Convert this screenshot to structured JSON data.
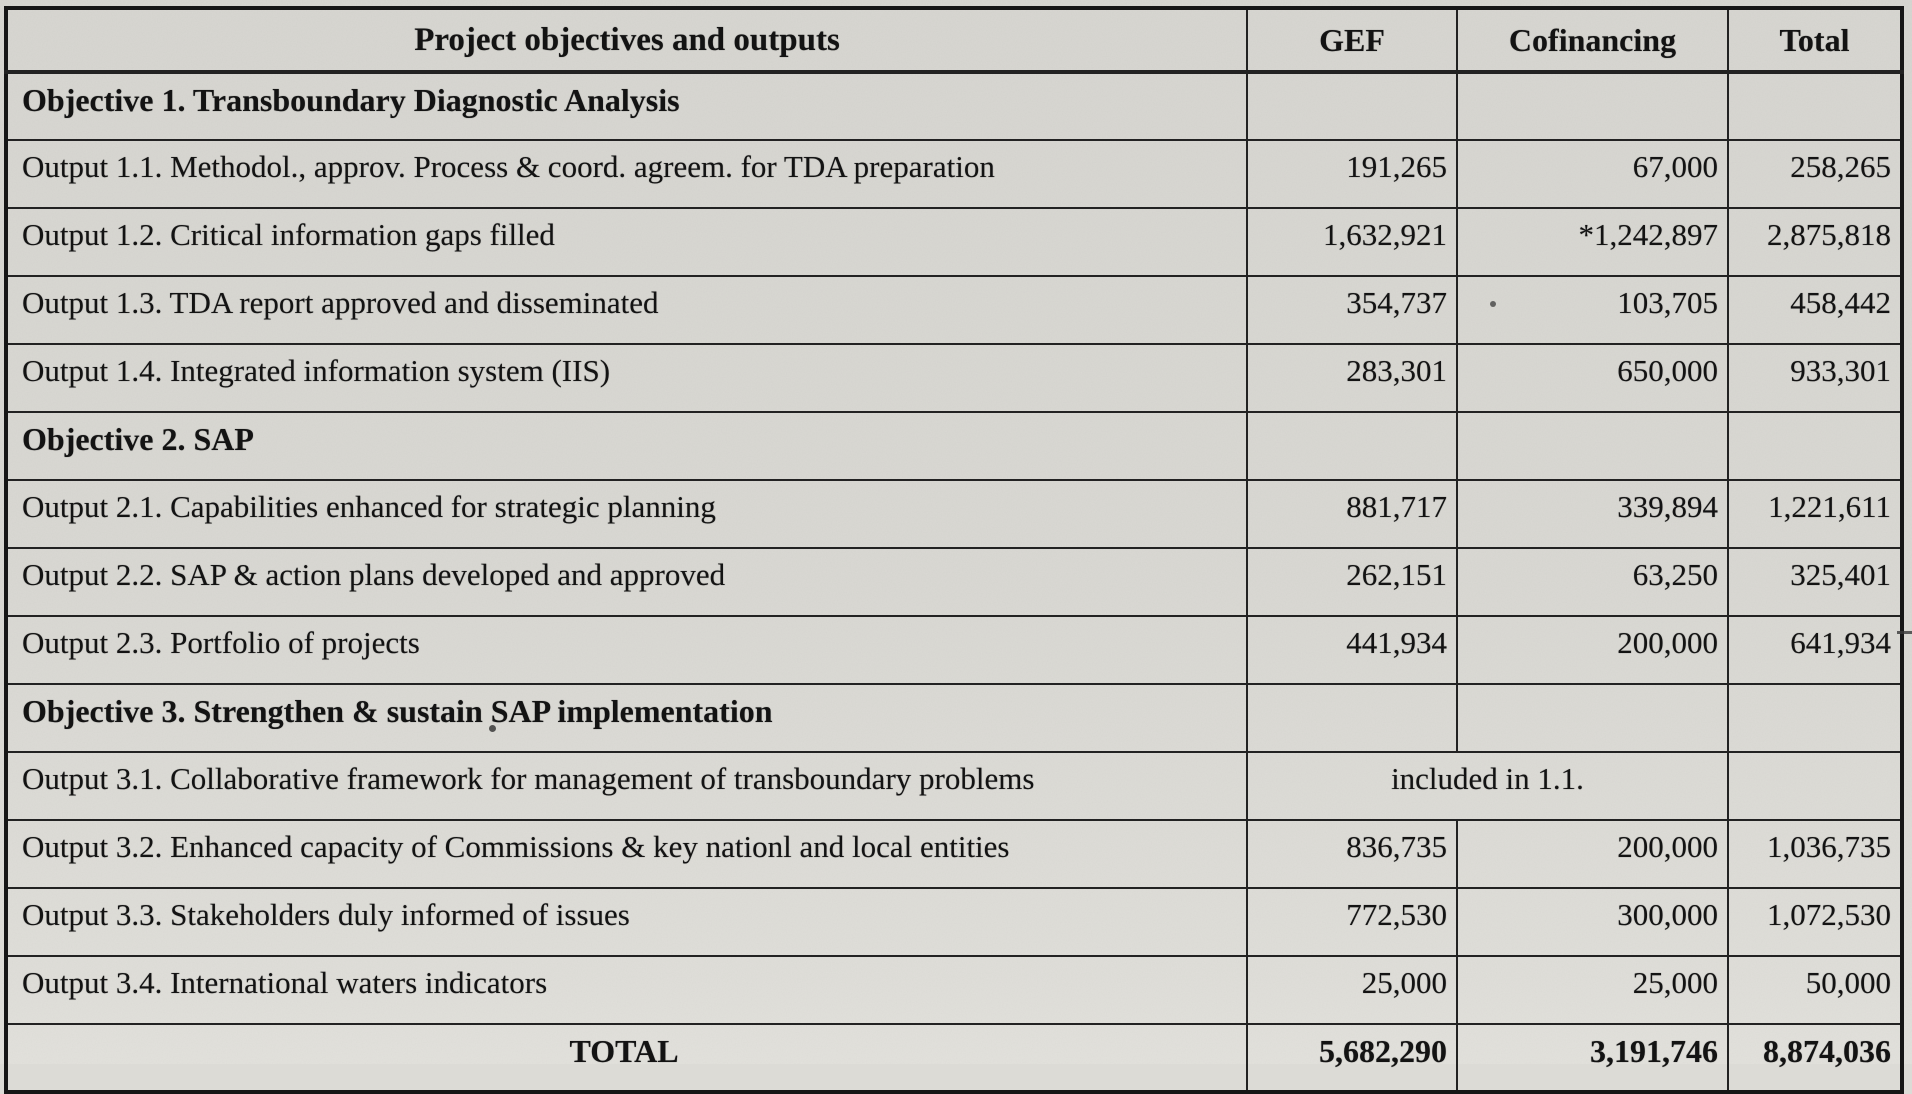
{
  "table": {
    "columns": [
      "Project objectives and outputs",
      "GEF",
      "Cofinancing",
      "Total"
    ],
    "rows": [
      {
        "type": "section",
        "label": "Objective 1. Transboundary Diagnostic Analysis"
      },
      {
        "type": "item",
        "label": "Output 1.1. Methodol., approv. Process & coord. agreem. for TDA preparation",
        "gef": "191,265",
        "cofinancing": "67,000",
        "total": "258,265"
      },
      {
        "type": "item",
        "label": "Output 1.2. Critical information gaps filled",
        "gef": "1,632,921",
        "cofinancing": "*1,242,897",
        "total": "2,875,818"
      },
      {
        "type": "item",
        "label": "Output 1.3. TDA report approved and disseminated",
        "gef": "354,737",
        "cofinancing": "103,705",
        "total": "458,442"
      },
      {
        "type": "item",
        "label": "Output 1.4. Integrated information system (IIS)",
        "gef": "283,301",
        "cofinancing": "650,000",
        "total": "933,301"
      },
      {
        "type": "section",
        "label": "Objective 2. SAP"
      },
      {
        "type": "item",
        "label": "Output 2.1. Capabilities enhanced for strategic planning",
        "gef": "881,717",
        "cofinancing": "339,894",
        "total": "1,221,611"
      },
      {
        "type": "item",
        "label": "Output 2.2. SAP & action plans developed and approved",
        "gef": "262,151",
        "cofinancing": "63,250",
        "total": "325,401"
      },
      {
        "type": "item",
        "label": "Output 2.3. Portfolio of projects",
        "gef": "441,934",
        "cofinancing": "200,000",
        "total": "641,934"
      },
      {
        "type": "section",
        "label": "Objective 3. Strengthen & sustain SAP implementation"
      },
      {
        "type": "merged",
        "label": "Output 3.1. Collaborative framework for management of transboundary problems",
        "merged_note": "included in 1.1.",
        "total": ""
      },
      {
        "type": "item",
        "label": "Output 3.2. Enhanced capacity of Commissions & key nationl and local entities",
        "gef": "836,735",
        "cofinancing": "200,000",
        "total": "1,036,735"
      },
      {
        "type": "item",
        "label": "Output 3.3. Stakeholders duly informed of issues",
        "gef": "772,530",
        "cofinancing": "300,000",
        "total": "1,072,530"
      },
      {
        "type": "item",
        "label": "Output 3.4. International waters indicators",
        "gef": "25,000",
        "cofinancing": "25,000",
        "total": "50,000"
      },
      {
        "type": "total",
        "label": "TOTAL",
        "gef": "5,682,290",
        "cofinancing": "3,191,746",
        "total": "8,874,036"
      }
    ]
  }
}
